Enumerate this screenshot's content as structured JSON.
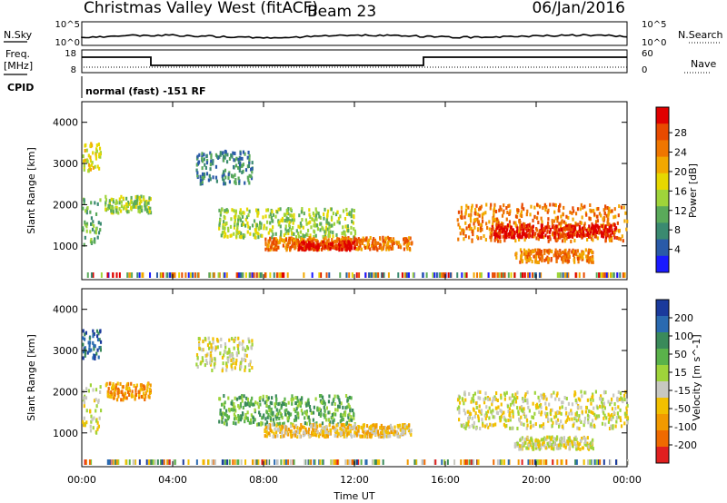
{
  "header": {
    "station": "Christmas Valley West (fitACF)",
    "beam": "Beam 23",
    "date": "06/Jan/2016"
  },
  "status_panels": {
    "nsky_label": "N.Sky",
    "nsearch_label": "N.Search",
    "nave_label": "Nave",
    "freq_label_line1": "Freq.",
    "freq_label_line2": "[MHz]",
    "cpid_label": "CPID",
    "cpid_text": "normal (fast) -151 RF",
    "noise_ticks_left": [
      "10^5",
      "10^0"
    ],
    "noise_ticks_right": [
      "10^5",
      "10^0"
    ],
    "freq_ticks": [
      "18",
      "8"
    ],
    "nave_ticks": [
      "60",
      "0"
    ]
  },
  "chart_data": [
    {
      "type": "heatmap",
      "title": "Power",
      "ylabel": "Slant Range [km]",
      "ylim": [
        180,
        4500
      ],
      "yticks": [
        "1000",
        "2000",
        "3000",
        "4000"
      ],
      "xlabel": "Time UT",
      "xticks": [
        "00:00",
        "04:00",
        "08:00",
        "12:00",
        "16:00",
        "20:00",
        "00:00"
      ],
      "xlim_hours": [
        0,
        24
      ],
      "colorbar": {
        "label": "Power [dB]",
        "ticks": [
          "4",
          "8",
          "12",
          "16",
          "20",
          "24",
          "28"
        ],
        "colors": [
          "#1a1aff",
          "#2a5aa8",
          "#3a8a70",
          "#5aaa5a",
          "#9fd43a",
          "#e6d800",
          "#f2a800",
          "#ef7600",
          "#e84a00",
          "#e00000"
        ]
      },
      "echo_bands": [
        {
          "t_start": 0.0,
          "t_end": 0.8,
          "r_low": 1000,
          "r_high": 2200,
          "level": 3
        },
        {
          "t_start": 0.0,
          "t_end": 0.8,
          "r_low": 2800,
          "r_high": 3500,
          "level": 5
        },
        {
          "t_start": 1.0,
          "t_end": 3.0,
          "r_low": 1800,
          "r_high": 2200,
          "level": 4
        },
        {
          "t_start": 5.0,
          "t_end": 7.5,
          "r_low": 2500,
          "r_high": 3300,
          "level": 2
        },
        {
          "t_start": 6.0,
          "t_end": 12.0,
          "r_low": 1200,
          "r_high": 1900,
          "level": 4
        },
        {
          "t_start": 8.0,
          "t_end": 14.5,
          "r_low": 900,
          "r_high": 1200,
          "level": 7
        },
        {
          "t_start": 9.5,
          "t_end": 12.0,
          "r_low": 900,
          "r_high": 1100,
          "level": 9
        },
        {
          "t_start": 16.5,
          "t_end": 24.0,
          "r_low": 1100,
          "r_high": 2000,
          "level": 7
        },
        {
          "t_start": 18.0,
          "t_end": 23.5,
          "r_low": 1200,
          "r_high": 1500,
          "level": 9
        },
        {
          "t_start": 19.0,
          "t_end": 22.5,
          "r_low": 600,
          "r_high": 900,
          "level": 7
        }
      ]
    },
    {
      "type": "heatmap",
      "title": "Velocity",
      "ylabel": "Slant Range [km]",
      "ylim": [
        180,
        4500
      ],
      "yticks": [
        "1000",
        "2000",
        "3000",
        "4000"
      ],
      "xlabel": "Time UT",
      "xticks": [
        "00:00",
        "04:00",
        "08:00",
        "12:00",
        "16:00",
        "20:00",
        "00:00"
      ],
      "xlim_hours": [
        0,
        24
      ],
      "colorbar": {
        "label": "Velocity [m s^-1]",
        "ticks": [
          "200",
          "100",
          "50",
          "15",
          "-15",
          "-50",
          "-100",
          "-200"
        ],
        "colors": [
          "#1a3a9c",
          "#2a6ab0",
          "#3a8a5a",
          "#5ab24a",
          "#9fd43a",
          "#c8c8c0",
          "#f2c000",
          "#f29a00",
          "#ef6a00",
          "#e02020"
        ]
      },
      "echo_bands": [
        {
          "t_start": 0.0,
          "t_end": 0.8,
          "r_low": 1000,
          "r_high": 2200,
          "level": 5
        },
        {
          "t_start": 0.0,
          "t_end": 0.8,
          "r_low": 2800,
          "r_high": 3500,
          "level": 1
        },
        {
          "t_start": 1.0,
          "t_end": 3.0,
          "r_low": 1800,
          "r_high": 2200,
          "level": 7
        },
        {
          "t_start": 5.0,
          "t_end": 7.5,
          "r_low": 2500,
          "r_high": 3300,
          "level": 5
        },
        {
          "t_start": 6.0,
          "t_end": 12.0,
          "r_low": 1200,
          "r_high": 1900,
          "level": 3
        },
        {
          "t_start": 8.0,
          "t_end": 14.5,
          "r_low": 900,
          "r_high": 1200,
          "level": 6
        },
        {
          "t_start": 16.5,
          "t_end": 24.0,
          "r_low": 1100,
          "r_high": 2000,
          "level": 5
        },
        {
          "t_start": 19.0,
          "t_end": 22.5,
          "r_low": 600,
          "r_high": 900,
          "level": 5
        }
      ]
    }
  ]
}
